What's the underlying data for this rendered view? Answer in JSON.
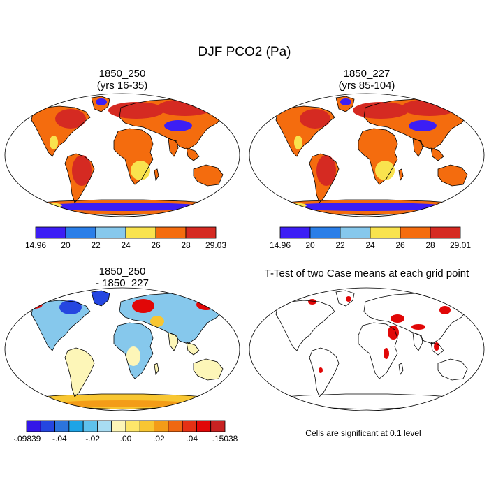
{
  "title": "DJF PCO2 (Pa)",
  "panels": [
    {
      "id": "p1",
      "title_line1": "1850_250",
      "title_line2": "(yrs 16-35)",
      "colorbar": {
        "labels": [
          "14.96",
          "20",
          "22",
          "24",
          "26",
          "28",
          "29.03"
        ],
        "colors": [
          "#3c1ef5",
          "#2a7ee8",
          "#86c8ec",
          "#f9e34e",
          "#f46c0e",
          "#d52a22"
        ]
      }
    },
    {
      "id": "p2",
      "title_line1": "1850_227",
      "title_line2": "(yrs 85-104)",
      "colorbar": {
        "labels": [
          "14.96",
          "20",
          "22",
          "24",
          "26",
          "28",
          "29.01"
        ],
        "colors": [
          "#3c1ef5",
          "#2a7ee8",
          "#86c8ec",
          "#f9e34e",
          "#f46c0e",
          "#d52a22"
        ]
      }
    },
    {
      "id": "p3",
      "title_line1": "1850_250",
      "title_line2": "- 1850_227",
      "colorbar": {
        "labels": [
          "-.09839",
          "-.04",
          "-.02",
          ".00",
          ".02",
          ".04",
          ".15038"
        ],
        "colors": [
          "#3316e8",
          "#2546e0",
          "#2c74dc",
          "#1ea4e6",
          "#5ec1ec",
          "#a8dcf2",
          "#fdf6b8",
          "#fde66a",
          "#f8c632",
          "#f39c18",
          "#ef6812",
          "#e43114",
          "#e10707",
          "#c82222"
        ]
      }
    },
    {
      "id": "p4",
      "title": "T-Test of two Case means at each grid point",
      "note": "Cells are significant at 0.1 level"
    }
  ],
  "palette": {
    "ocean": "#ffffff",
    "outline": "#000000",
    "land_mean": "#f46c0e",
    "land_high": "#d52a22",
    "land_low": "#3c1ef5",
    "land_mid": "#f9e34e",
    "diff_neutral": "#fdf6b8",
    "diff_neg": "#86c8ec",
    "diff_pos": "#f8c632",
    "diff_strong_pos": "#e10707",
    "diff_strong_neg": "#2546e0",
    "significant": "#e10707"
  }
}
